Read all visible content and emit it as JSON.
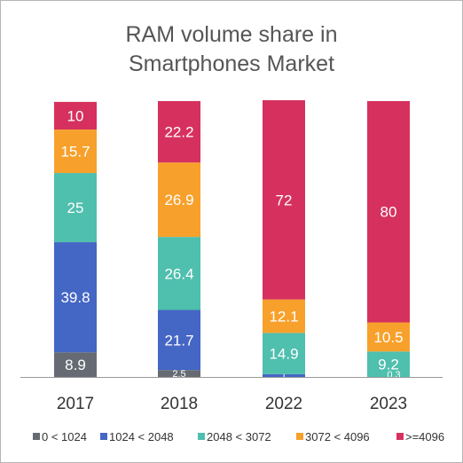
{
  "chart_data": {
    "type": "bar",
    "stacked": true,
    "title_lines": [
      "RAM volume share in",
      "Smartphones Market"
    ],
    "categories": [
      "2017",
      "2018",
      "2022",
      "2023"
    ],
    "series": [
      {
        "name": "0 < 1024",
        "color": "#666b73",
        "values": [
          8.9,
          2.5,
          0,
          0
        ],
        "labels": [
          "8.9",
          "2.5",
          "",
          ""
        ]
      },
      {
        "name": "1024 < 2048",
        "color": "#4466c4",
        "values": [
          39.8,
          21.7,
          1,
          0
        ],
        "labels": [
          "39.8",
          "21.7",
          "1",
          ""
        ]
      },
      {
        "name": "2048 < 3072",
        "color": "#4fbfae",
        "values": [
          25,
          26.4,
          14.9,
          9.2
        ],
        "labels": [
          "25",
          "26.4",
          "14.9",
          "9.2"
        ]
      },
      {
        "name": "3072 < 4096",
        "color": "#f7a12c",
        "values": [
          15.7,
          26.9,
          12.1,
          10.5
        ],
        "labels": [
          "15.7",
          "26.9",
          "12.1",
          "10.5"
        ]
      },
      {
        "name": ">=4096",
        "color": "#d6315e",
        "values": [
          10,
          22.2,
          72,
          80
        ],
        "labels": [
          "10",
          "22.2",
          "72",
          "80"
        ]
      }
    ],
    "extra_labels": [
      {
        "category": "2023",
        "text": "0.3"
      }
    ],
    "ylim": [
      0,
      100
    ],
    "grid": false,
    "legend_position": "bottom"
  }
}
